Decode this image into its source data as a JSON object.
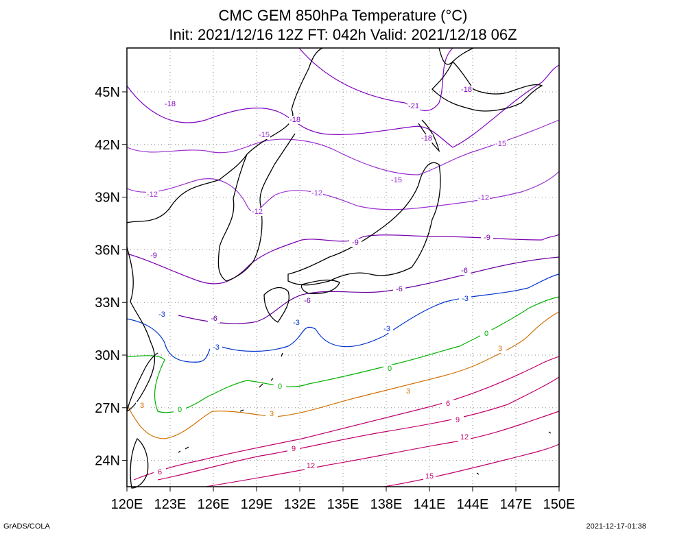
{
  "title": {
    "line1": "CMC GEM 850hPa Temperature (°C)",
    "line2": "Init: 2021/12/16 12Z  FT: 042h  Valid: 2021/12/18 06Z"
  },
  "axes": {
    "x_ticks": [
      "120E",
      "123E",
      "126E",
      "129E",
      "132E",
      "135E",
      "138E",
      "141E",
      "144E",
      "147E",
      "150E"
    ],
    "y_ticks": [
      "45N",
      "42N",
      "39N",
      "36N",
      "33N",
      "30N",
      "27N",
      "24N"
    ],
    "lon_range": [
      120,
      150
    ],
    "lat_range": [
      22.5,
      47.5
    ],
    "grid": "dotted"
  },
  "contours": [
    {
      "level": "-21",
      "color": "#8000c0"
    },
    {
      "level": "-18",
      "color": "#8000c0"
    },
    {
      "level": "-15",
      "color": "#9b30d0"
    },
    {
      "level": "-12",
      "color": "#9b30d0"
    },
    {
      "level": "-9",
      "color": "#7a00b0"
    },
    {
      "level": "-6",
      "color": "#6a00a0"
    },
    {
      "level": "-3",
      "color": "#0033cc"
    },
    {
      "level": "0",
      "color": "#00b000"
    },
    {
      "level": "3",
      "color": "#d07000"
    },
    {
      "level": "6",
      "color": "#c0006a"
    },
    {
      "level": "9",
      "color": "#c0006a"
    },
    {
      "level": "12",
      "color": "#c0006a"
    },
    {
      "level": "15",
      "color": "#c0006a"
    }
  ],
  "footer": {
    "left": "GrADS/COLA",
    "right": "2021-12-17-01:38"
  }
}
